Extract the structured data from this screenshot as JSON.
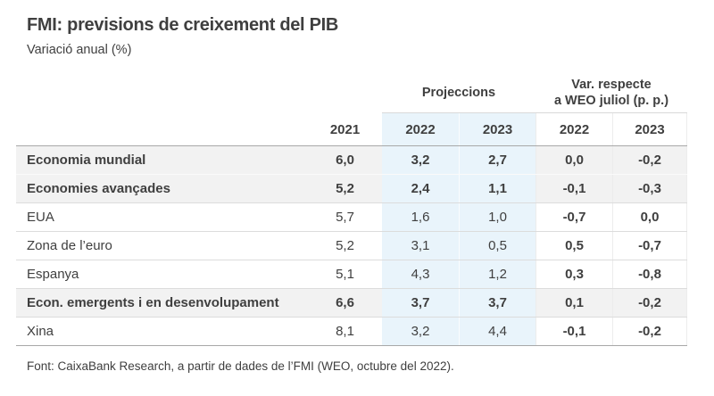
{
  "chart_data": {
    "type": "table",
    "title": "FMI: previsions de creixement del PIB",
    "subtitle": "Variació anual (%)",
    "group_headers": {
      "projections": "Projeccions",
      "var_lines": [
        "Var. respecte",
        "a WEO juliol (p. p.)"
      ]
    },
    "columns": [
      "2021",
      "2022",
      "2023",
      "2022",
      "2023"
    ],
    "column_groups": [
      {
        "label": "",
        "span": 1
      },
      {
        "label": "Projeccions",
        "span": 2
      },
      {
        "label": "Var. respecte a WEO juliol (p. p.)",
        "span": 2
      }
    ],
    "rows": [
      {
        "label": "Economia mundial",
        "emphasis": true,
        "values": [
          "6,0",
          "3,2",
          "2,7",
          "0,0",
          "-0,2"
        ]
      },
      {
        "label": "Economies avançades",
        "emphasis": true,
        "values": [
          "5,2",
          "2,4",
          "1,1",
          "-0,1",
          "-0,3"
        ]
      },
      {
        "label": "EUA",
        "emphasis": false,
        "values": [
          "5,7",
          "1,6",
          "1,0",
          "-0,7",
          "0,0"
        ]
      },
      {
        "label": "Zona de l’euro",
        "emphasis": false,
        "values": [
          "5,2",
          "3,1",
          "0,5",
          "0,5",
          "-0,7"
        ]
      },
      {
        "label": "Espanya",
        "emphasis": false,
        "values": [
          "5,1",
          "4,3",
          "1,2",
          "0,3",
          "-0,8"
        ]
      },
      {
        "label": "Econ. emergents i en desenvolupament",
        "emphasis": true,
        "values": [
          "6,6",
          "3,7",
          "3,7",
          "0,1",
          "-0,2"
        ]
      },
      {
        "label": "Xina",
        "emphasis": false,
        "values": [
          "8,1",
          "3,2",
          "4,4",
          "-0,1",
          "-0,2"
        ]
      }
    ],
    "source": "Font: CaixaBank Research, a partir de dades de l’FMI (WEO, octubre del 2022)."
  },
  "colors": {
    "projection_band": "#e9f4fb",
    "shaded_row": "#f2f2f2",
    "text": "#3f3f3f",
    "line_light": "#d9d9d9",
    "line_dark": "#a8a8a8",
    "row_separator": "#dcdcdc"
  }
}
